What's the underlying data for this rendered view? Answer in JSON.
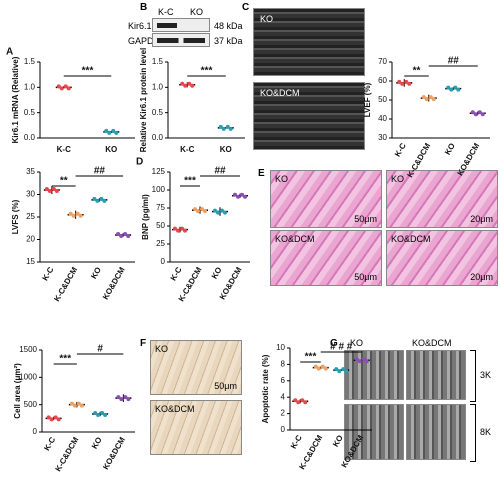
{
  "chart_data": [
    {
      "type": "dot",
      "panel": "A",
      "y_label": "Kir6.1 mRNA (Relative)",
      "categories": [
        "K-C",
        "KO"
      ],
      "values": [
        1.0,
        0.12
      ],
      "errors": [
        0.02,
        0.02
      ],
      "colors": [
        "#e8474b",
        "#2a9db0"
      ],
      "ylim": [
        0,
        1.5
      ],
      "yticks": [
        {
          "value": 0,
          "label": "0.0"
        },
        {
          "value": 0.5,
          "label": "0.5"
        },
        {
          "value": 1,
          "label": "1.0"
        },
        {
          "value": 1.5,
          "label": "1.5"
        }
      ],
      "annotations": [
        "***"
      ]
    },
    {
      "type": "dot",
      "y_label": "Relative Kir6.1 protein level",
      "categories": [
        "K-C",
        "KO"
      ],
      "values": [
        1.05,
        0.2
      ],
      "errors": [
        0.05,
        0.01
      ],
      "colors": [
        "#e8474b",
        "#2a9db0"
      ],
      "ylim": [
        0,
        1.5
      ],
      "yticks": [
        {
          "value": 0,
          "label": "0.0"
        },
        {
          "value": 0.5,
          "label": "0.5"
        },
        {
          "value": 1,
          "label": "1.0"
        },
        {
          "value": 1.5,
          "label": "1.5"
        }
      ],
      "annotations": [
        "***"
      ]
    },
    {
      "type": "dot",
      "y_label": "LVEF (%)",
      "categories": [
        "K-C",
        "K-C&DCM",
        "KO",
        "KO&DCM"
      ],
      "values": [
        59,
        51,
        56,
        43
      ],
      "errors": [
        2,
        1.8,
        0.8,
        1
      ],
      "colors": [
        "#e8474b",
        "#f0a060",
        "#2a9db0",
        "#8a4fb0"
      ],
      "ylim": [
        30,
        70
      ],
      "yticks": [
        30,
        40,
        50,
        60,
        70
      ],
      "annotations": [
        "**",
        "##"
      ]
    },
    {
      "type": "dot",
      "y_label": "LVFS (%)",
      "categories": [
        "K-C",
        "K-C&DCM",
        "KO",
        "KO&DCM"
      ],
      "values": [
        31,
        25.5,
        28.8,
        21
      ],
      "errors": [
        0.9,
        0.9,
        0.4,
        0.4
      ],
      "colors": [
        "#e8474b",
        "#f0a060",
        "#2a9db0",
        "#8a4fb0"
      ],
      "ylim": [
        15,
        35
      ],
      "yticks": [
        15,
        20,
        25,
        30,
        35
      ],
      "annotations": [
        "**",
        "##"
      ]
    },
    {
      "type": "dot",
      "panel": "D",
      "y_label": "BNP (pg/ml)",
      "categories": [
        "K-C",
        "K-C&DCM",
        "KO",
        "KO&DCM"
      ],
      "values": [
        45,
        72,
        70,
        92
      ],
      "errors": [
        4,
        5,
        6,
        3
      ],
      "colors": [
        "#e8474b",
        "#f0a060",
        "#2a9db0",
        "#8a4fb0"
      ],
      "ylim": [
        0,
        125
      ],
      "yticks": [
        0,
        25,
        50,
        75,
        100,
        125
      ],
      "annotations": [
        "***",
        "##"
      ]
    },
    {
      "type": "dot",
      "y_label": "Cell area (μm²)",
      "categories": [
        "K-C",
        "K-C&DCM",
        "KO",
        "KO&DCM"
      ],
      "values": [
        250,
        500,
        330,
        620
      ],
      "errors": [
        30,
        50,
        40,
        70
      ],
      "colors": [
        "#e8474b",
        "#f0a060",
        "#2a9db0",
        "#8a4fb0"
      ],
      "ylim": [
        0,
        1500
      ],
      "yticks": [
        0,
        500,
        1000,
        1500
      ],
      "annotations": [
        "***",
        "#"
      ]
    },
    {
      "type": "dot",
      "y_label": "Apoptotic rate (%)",
      "categories": [
        "K-C",
        "K-C&DCM",
        "KO",
        "KO&DCM"
      ],
      "values": [
        3.5,
        7.6,
        7.3,
        8.5
      ],
      "errors": [
        0.25,
        0.15,
        0.1,
        0.1
      ],
      "colors": [
        "#e8474b",
        "#f0a060",
        "#2a9db0",
        "#8a4fb0"
      ],
      "ylim": [
        0,
        10
      ],
      "yticks": [
        0,
        2,
        4,
        6,
        8,
        10
      ],
      "annotations": [
        "***",
        "# # #"
      ]
    }
  ],
  "blot": {
    "panel": "B",
    "lanes": [
      "K-C",
      "KO"
    ],
    "bands": [
      {
        "name": "Kir6.1",
        "size": "48 kDa"
      },
      {
        "name": "GAPDH",
        "size": "37 kDa"
      }
    ]
  },
  "echo": {
    "panel": "C",
    "labels": [
      "KO",
      "KO&DCM"
    ]
  },
  "histology": {
    "panel": "E",
    "tiles": [
      {
        "label": "KO",
        "scale": "50μm"
      },
      {
        "label": "KO",
        "scale": "20μm"
      },
      {
        "label": "KO&DCM",
        "scale": "50μm"
      },
      {
        "label": "KO&DCM",
        "scale": "20μm"
      }
    ]
  },
  "ihc": {
    "panel": "F",
    "tiles": [
      {
        "label": "KO",
        "scale": "50μm"
      },
      {
        "label": "KO&DCM"
      }
    ]
  },
  "em": {
    "panel": "G",
    "columns": [
      "KO",
      "KO&DCM"
    ],
    "rows": [
      "3K",
      "8K"
    ]
  }
}
